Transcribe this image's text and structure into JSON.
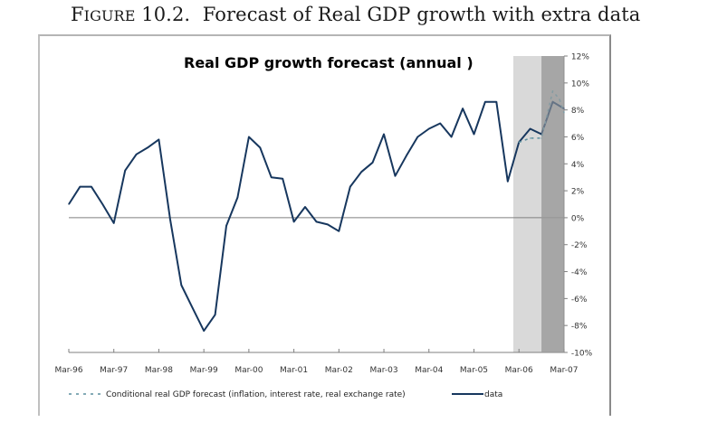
{
  "caption": {
    "figure_label_first": "F",
    "figure_label_rest": "IGURE",
    "figure_number": "10.2.",
    "text": "Forecast of Real GDP growth with extra data"
  },
  "chart_data": {
    "type": "line",
    "title": "Real GDP growth forecast  (annual )",
    "xlabel": "",
    "ylabel": "",
    "x_tick_labels": [
      "Mar-96",
      "Mar-97",
      "Mar-98",
      "Mar-99",
      "Mar-00",
      "Mar-01",
      "Mar-02",
      "Mar-03",
      "Mar-04",
      "Mar-05",
      "Mar-06",
      "Mar-07"
    ],
    "y_tick_labels": [
      "12%",
      "10%",
      "8%",
      "6%",
      "4%",
      "2%",
      "0%",
      "-2%",
      "-4%",
      "-6%",
      "-8%",
      "-10%"
    ],
    "ylim": [
      -10,
      12
    ],
    "x_range_quarters": [
      0,
      44
    ],
    "x_unit": "quarters since Mar-96",
    "y_unit": "percent",
    "zero_line": true,
    "grid": false,
    "legend_position": "bottom",
    "shaded_regions": [
      {
        "name": "forecast-period-1",
        "from_quarter": 39.5,
        "to_quarter": 42,
        "color": "#d9d9d9"
      },
      {
        "name": "forecast-period-2",
        "from_quarter": 42,
        "to_quarter": 44.5,
        "color": "#a6a6a6"
      }
    ],
    "series": [
      {
        "name": "data",
        "style": "solid",
        "color": "#17375e",
        "x": [
          0,
          1,
          2,
          3,
          4,
          5,
          6,
          7,
          8,
          9,
          10,
          11,
          12,
          13,
          14,
          15,
          16,
          17,
          18,
          19,
          20,
          21,
          22,
          23,
          24,
          25,
          26,
          27,
          28,
          29,
          30,
          31,
          32,
          33,
          34,
          35,
          36,
          37,
          38,
          39,
          40,
          41,
          42,
          43,
          44
        ],
        "values": [
          1.0,
          2.3,
          2.3,
          1.0,
          -0.4,
          3.5,
          4.7,
          5.2,
          5.8,
          -0.1,
          -5.0,
          -6.7,
          -8.4,
          -7.2,
          -0.6,
          1.5,
          6.0,
          5.2,
          3.0,
          2.9,
          -0.3,
          0.8,
          -0.3,
          -0.5,
          -1.0,
          2.3,
          3.4,
          4.1,
          6.2,
          3.1,
          4.6,
          6.0,
          6.6,
          7.0,
          6.0,
          8.1,
          6.2,
          8.6,
          8.6,
          2.7,
          5.6,
          6.6,
          6.2,
          8.6,
          8.1
        ]
      },
      {
        "name": "Conditional real  GDP forecast (inflation, interest rate, real exchange rate)",
        "style": "dashed",
        "color": "#5b8f9e",
        "x": [
          40,
          41,
          42,
          43,
          43.6,
          44
        ],
        "values": [
          5.6,
          5.9,
          5.9,
          9.4,
          8.8,
          7.8
        ]
      }
    ],
    "legend": [
      {
        "label": "Conditional real  GDP forecast (inflation, interest rate, real exchange rate)",
        "style": "dashed"
      },
      {
        "label": "data",
        "style": "solid"
      }
    ]
  }
}
